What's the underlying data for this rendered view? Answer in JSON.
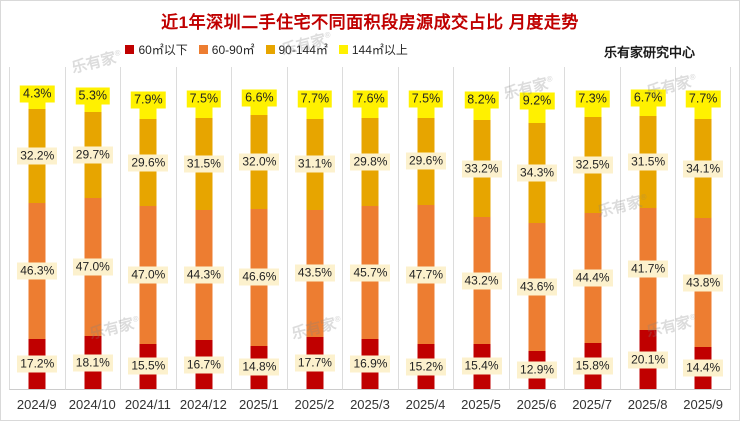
{
  "header": {
    "title": "近1年深圳二手住宅不同面积段房源成交占比 月度走势",
    "source": "乐有家研究中心"
  },
  "watermark": {
    "text": "乐有家",
    "reg": "®"
  },
  "colors": {
    "title": "#c00000",
    "label_background": "#fcf1cd",
    "grid_line": "#dcdcdc",
    "series_red": "#c00000",
    "series_orange": "#ed7d31",
    "series_amber": "#e7a500",
    "series_yellow": "#fff100"
  },
  "chart_data": {
    "type": "bar",
    "stacked": true,
    "unit": "%",
    "title": "近1年深圳二手住宅不同面积段房源成交占比 月度走势",
    "legend_position": "top",
    "grid": false,
    "ylim": [
      0,
      100
    ],
    "categories": [
      "2024/9",
      "2024/10",
      "2024/11",
      "2024/12",
      "2025/1",
      "2025/2",
      "2025/3",
      "2025/4",
      "2025/5",
      "2025/6",
      "2025/7",
      "2025/8",
      "2025/9"
    ],
    "series": [
      {
        "name": "60㎡以下",
        "color": "#c00000",
        "values": [
          17.2,
          18.1,
          15.5,
          16.7,
          14.8,
          17.7,
          16.9,
          15.2,
          15.4,
          12.9,
          15.8,
          20.1,
          14.4
        ]
      },
      {
        "name": "60-90㎡",
        "color": "#ed7d31",
        "values": [
          46.3,
          47.0,
          47.0,
          44.3,
          46.6,
          43.5,
          45.7,
          47.7,
          43.2,
          43.6,
          44.4,
          41.7,
          43.8
        ]
      },
      {
        "name": "90-144㎡",
        "color": "#e7a500",
        "values": [
          32.2,
          29.7,
          29.6,
          31.5,
          32.0,
          31.1,
          29.8,
          29.6,
          33.2,
          34.3,
          32.5,
          31.5,
          34.1
        ]
      },
      {
        "name": "144㎡以上",
        "color": "#fff100",
        "values": [
          4.3,
          5.3,
          7.9,
          7.5,
          6.6,
          7.7,
          7.6,
          7.5,
          8.2,
          9.2,
          7.3,
          6.7,
          7.7
        ]
      }
    ]
  }
}
